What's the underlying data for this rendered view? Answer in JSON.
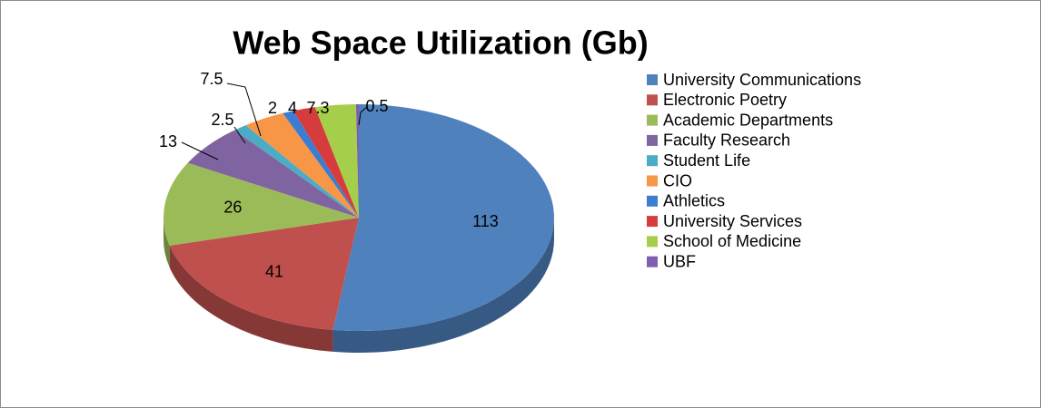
{
  "chart_data": {
    "type": "pie3d",
    "title": "Web Space Utilization (Gb)",
    "categories": [
      "University Communications",
      "Electronic Poetry",
      "Academic Departments",
      "Faculty Research",
      "Student Life",
      "CIO",
      "Athletics",
      "University Services",
      "School of Medicine",
      "UBF"
    ],
    "values": [
      113,
      41,
      26,
      13,
      2.5,
      7.5,
      2,
      4,
      7.3,
      0.5
    ],
    "colors": [
      "#4f81bd",
      "#c0504d",
      "#9bbb59",
      "#8064a2",
      "#4bacc6",
      "#f79646",
      "#3b7dd0",
      "#d63c3c",
      "#a5cf4a",
      "#7f5fae"
    ],
    "legend": "right"
  }
}
